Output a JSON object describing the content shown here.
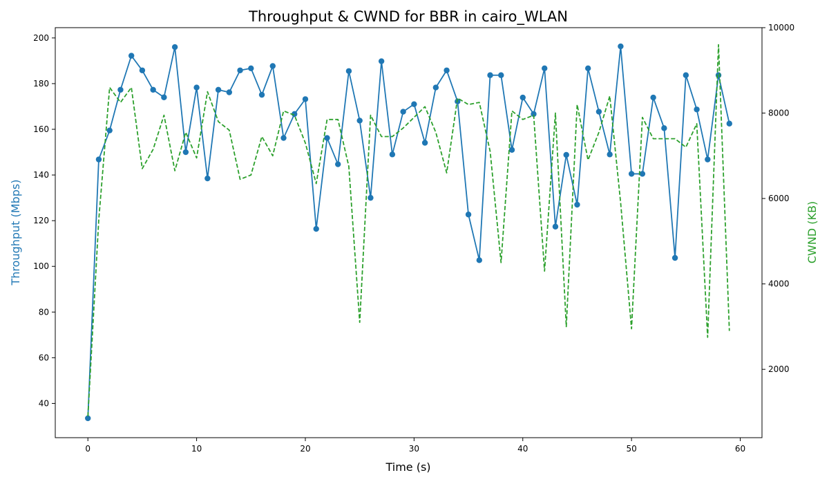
{
  "chart_data": {
    "type": "line",
    "title": "Throughput & CWND for BBR in cairo_WLAN",
    "xlabel": "Time (s)",
    "ylabel_left": "Throughput (Mbps)",
    "ylabel_right": "CWND (KB)",
    "xlim": [
      -3,
      62
    ],
    "ylim_left": [
      25,
      204.5
    ],
    "ylim_right": [
      400,
      10000
    ],
    "x_ticks": [
      0,
      10,
      20,
      30,
      40,
      50,
      60
    ],
    "y_ticks_left": [
      40,
      60,
      80,
      100,
      120,
      140,
      160,
      180,
      200
    ],
    "y_ticks_right": [
      2000,
      4000,
      6000,
      8000,
      10000
    ],
    "grid": false,
    "legend": "none",
    "x": [
      0,
      1,
      2,
      3,
      4,
      5,
      6,
      7,
      8,
      9,
      10,
      11,
      12,
      13,
      14,
      15,
      16,
      17,
      18,
      19,
      20,
      21,
      22,
      23,
      24,
      25,
      26,
      27,
      28,
      29,
      30,
      31,
      32,
      33,
      34,
      35,
      36,
      37,
      38,
      39,
      40,
      41,
      42,
      43,
      44,
      45,
      46,
      47,
      48,
      49,
      50,
      51,
      52,
      53,
      54,
      55,
      56,
      57,
      58,
      59
    ],
    "series": [
      {
        "axis": "left",
        "color": "#1f77b4",
        "style": "solid-markers",
        "values": [
          33.5,
          146.8,
          159.5,
          177.3,
          192.2,
          185.8,
          177.3,
          174.0,
          196.0,
          150.0,
          178.3,
          138.5,
          177.3,
          176.2,
          185.8,
          186.7,
          175.1,
          187.7,
          156.2,
          166.7,
          173.2,
          116.4,
          156.2,
          144.7,
          185.5,
          163.8,
          130.0,
          189.8,
          149.0,
          167.7,
          171.0,
          154.1,
          178.3,
          185.8,
          172.2,
          122.7,
          102.7,
          183.7,
          183.7,
          151.0,
          173.9,
          166.7,
          186.7,
          117.4,
          148.8,
          127.0,
          186.7,
          167.7,
          149.0,
          196.3,
          140.5,
          140.5,
          173.9,
          160.5,
          103.7,
          183.7,
          168.7,
          146.8,
          183.7,
          162.5
        ]
      },
      {
        "axis": "right",
        "color": "#2ca02c",
        "style": "dashed",
        "values": [
          900,
          5500,
          8600,
          8250,
          8600,
          6700,
          7150,
          7950,
          6650,
          7550,
          6950,
          8500,
          7800,
          7600,
          6450,
          6550,
          7450,
          7000,
          8050,
          7950,
          7300,
          6350,
          7850,
          7850,
          6750,
          3100,
          7950,
          7450,
          7450,
          7650,
          7900,
          8150,
          7550,
          6600,
          8350,
          8200,
          8250,
          7100,
          4500,
          8050,
          7850,
          7950,
          4300,
          8000,
          3000,
          8200,
          6900,
          7550,
          8400,
          5900,
          2950,
          7900,
          7400,
          7400,
          7400,
          7200,
          7750,
          2750,
          9600,
          2900
        ]
      }
    ]
  }
}
